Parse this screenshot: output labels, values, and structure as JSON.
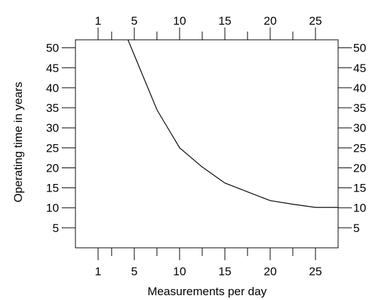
{
  "chart_data": {
    "type": "line",
    "xlabel": "Measurements per day",
    "ylabel": "Operating time in years",
    "xlim": [
      -1.5,
      27.5
    ],
    "ylim": [
      0,
      52
    ],
    "x_ticks_major": [
      1,
      5,
      10,
      15,
      20,
      25
    ],
    "x_tick_labels": [
      "1",
      "5",
      "10",
      "15",
      "20",
      "25"
    ],
    "x_ticks_minor": [
      2.5,
      7.5,
      12.5,
      17.5,
      22.5
    ],
    "y_ticks": [
      5,
      10,
      15,
      20,
      25,
      30,
      35,
      40,
      45,
      50
    ],
    "y_tick_labels": [
      "5",
      "10",
      "15",
      "20",
      "25",
      "30",
      "35",
      "40",
      "45",
      "50"
    ],
    "grid": false,
    "series": [
      {
        "x": [
          4.3,
          7.5,
          10,
          12.5,
          15,
          17.5,
          20,
          22.5,
          25,
          27.5
        ],
        "y": [
          52,
          34.5,
          25,
          20.2,
          16.2,
          14,
          11.8,
          10.9,
          10.1,
          10.1
        ],
        "color": "#000000"
      }
    ]
  }
}
